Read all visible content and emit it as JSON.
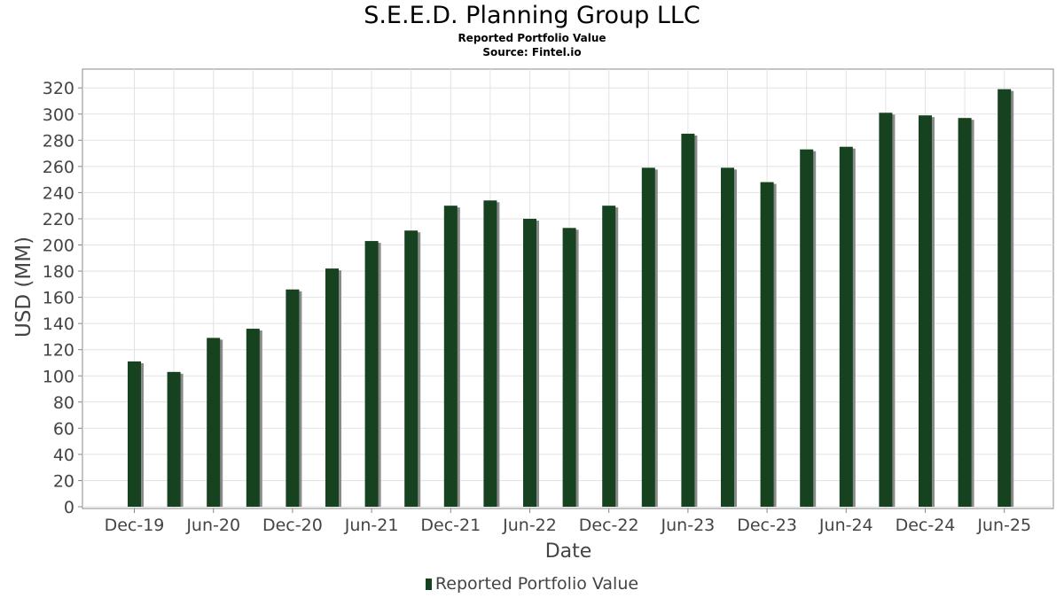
{
  "chart_data": {
    "type": "bar",
    "title": "S.E.E.D. Planning Group LLC",
    "subtitle": "Reported Portfolio Value",
    "source": "Source: Fintel.io",
    "xlabel": "Date",
    "ylabel": "USD (MM)",
    "ylim": [
      0,
      330
    ],
    "yticks": [
      0,
      20,
      40,
      60,
      80,
      100,
      120,
      140,
      160,
      180,
      200,
      220,
      240,
      260,
      280,
      300,
      320
    ],
    "x_tick_labels": [
      "Dec-19",
      "Jun-20",
      "Dec-20",
      "Jun-21",
      "Dec-21",
      "Jun-22",
      "Dec-22",
      "Jun-23",
      "Dec-23",
      "Jun-24",
      "Dec-24",
      "Jun-25"
    ],
    "categories": [
      "2019-12",
      "2020-03",
      "2020-06",
      "2020-09",
      "2020-12",
      "2021-03",
      "2021-06",
      "2021-09",
      "2021-12",
      "2022-03",
      "2022-06",
      "2022-09",
      "2022-12",
      "2023-03",
      "2023-06",
      "2023-09",
      "2023-12",
      "2024-03",
      "2024-06",
      "2024-09",
      "2024-12",
      "2025-03",
      "2025-06"
    ],
    "series": [
      {
        "name": "Reported Portfolio Value",
        "color": "#16421f",
        "values": [
          111,
          103,
          129,
          136,
          166,
          182,
          203,
          211,
          230,
          234,
          220,
          213,
          230,
          259,
          285,
          259,
          248,
          273,
          275,
          301,
          299,
          297,
          319
        ]
      }
    ],
    "grid": true,
    "legend": "bottom-center"
  }
}
